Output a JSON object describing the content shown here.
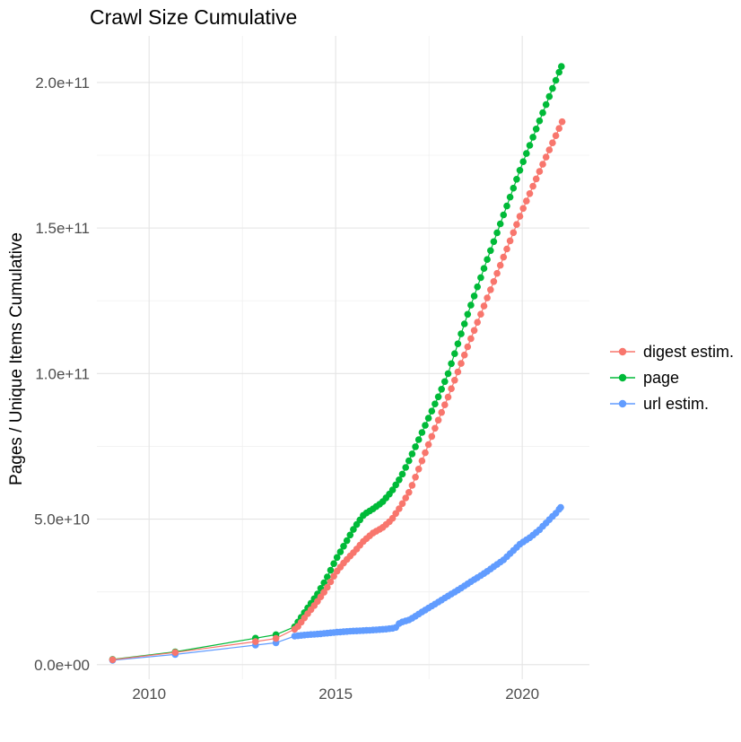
{
  "title": "Crawl Size Cumulative",
  "axes": {
    "x": {
      "tick_labels": [
        "2010",
        "2015",
        "2020"
      ]
    },
    "y": {
      "label": "Pages / Unique Items Cumulative",
      "tick_labels": [
        "0.0e+00",
        "5.0e+10",
        "1.0e+11",
        "1.5e+11",
        "2.0e+11"
      ]
    }
  },
  "legend": {
    "items": [
      {
        "label": "digest estim.",
        "color": "#F8766D"
      },
      {
        "label": "page",
        "color": "#00BA38"
      },
      {
        "label": "url estim.",
        "color": "#619CFF"
      }
    ]
  },
  "colors": {
    "background": "#FFFFFF",
    "grid_major": "#E4E4E4",
    "grid_minor": "#F0F0F0",
    "tick_text": "#4d4d4d"
  },
  "chart_data": {
    "type": "scatter",
    "title": "Crawl Size Cumulative",
    "xlabel": "",
    "ylabel": "Pages / Unique Items Cumulative",
    "grid": true,
    "legend_position": "right",
    "x_ticks_years": [
      2010,
      2015,
      2020
    ],
    "x_minor_ticks_years": [
      2012.5,
      2017.5
    ],
    "x_range_years": [
      2008.6,
      2021.8
    ],
    "y_tick_values": [
      0,
      50000000000.0,
      100000000000.0,
      150000000000.0,
      200000000000.0
    ],
    "y_tick_labels": [
      "0.0e+00",
      "5.0e+10",
      "1.0e+11",
      "1.5e+11",
      "2.0e+11"
    ],
    "y_minor_values": [
      25000000000.0,
      75000000000.0,
      125000000000.0,
      175000000000.0
    ],
    "y_range": [
      -5000000000.0,
      216000000000.0
    ],
    "value_unit": "items cumulative; anchor values given in billions (1e9)",
    "sampling": {
      "dense_start_year": 2013.9,
      "dense_step_years": 0.0875,
      "note": "sparse single crawl dots before 2014, then roughly monthly dots"
    },
    "series": [
      {
        "name": "page",
        "color": "#00BA38",
        "anchors_year_value_e9": [
          [
            2009.02,
            1.8
          ],
          [
            2010.7,
            4.4
          ],
          [
            2012.85,
            9.1
          ],
          [
            2013.4,
            10.3
          ],
          [
            2013.9,
            13.0
          ],
          [
            2014.25,
            19.5
          ],
          [
            2014.5,
            24.0
          ],
          [
            2014.75,
            29.5
          ],
          [
            2015.0,
            36.0
          ],
          [
            2015.25,
            41.5
          ],
          [
            2015.5,
            47.0
          ],
          [
            2015.75,
            51.5
          ],
          [
            2016.0,
            53.5
          ],
          [
            2016.25,
            55.8
          ],
          [
            2016.5,
            59.5
          ],
          [
            2016.75,
            64.5
          ],
          [
            2017.0,
            71.0
          ],
          [
            2017.25,
            78.0
          ],
          [
            2017.5,
            85.0
          ],
          [
            2017.75,
            92.0
          ],
          [
            2018.0,
            99.5
          ],
          [
            2018.5,
            119.0
          ],
          [
            2019.0,
            137.0
          ],
          [
            2019.5,
            154.5
          ],
          [
            2020.0,
            172.0
          ],
          [
            2020.5,
            188.0
          ],
          [
            2021.05,
            205.5
          ]
        ]
      },
      {
        "name": "digest estim.",
        "color": "#F8766D",
        "anchors_year_value_e9": [
          [
            2009.02,
            1.7
          ],
          [
            2010.7,
            4.2
          ],
          [
            2012.85,
            7.9
          ],
          [
            2013.4,
            9.0
          ],
          [
            2013.95,
            12.5
          ],
          [
            2014.25,
            17.5
          ],
          [
            2014.5,
            21.5
          ],
          [
            2014.75,
            26.0
          ],
          [
            2015.0,
            31.5
          ],
          [
            2015.25,
            35.5
          ],
          [
            2015.5,
            38.8
          ],
          [
            2015.75,
            42.5
          ],
          [
            2016.0,
            45.2
          ],
          [
            2016.25,
            47.0
          ],
          [
            2016.5,
            49.8
          ],
          [
            2016.75,
            54.5
          ],
          [
            2017.0,
            60.0
          ],
          [
            2017.25,
            68.0
          ],
          [
            2017.5,
            76.0
          ],
          [
            2017.75,
            84.0
          ],
          [
            2018.0,
            91.5
          ],
          [
            2018.5,
            108.0
          ],
          [
            2019.0,
            124.0
          ],
          [
            2019.5,
            140.0
          ],
          [
            2020.0,
            156.0
          ],
          [
            2020.5,
            170.5
          ],
          [
            2021.07,
            186.5
          ]
        ]
      },
      {
        "name": "url estim.",
        "color": "#619CFF",
        "anchors_year_value_e9": [
          [
            2009.02,
            1.5
          ],
          [
            2010.7,
            3.5
          ],
          [
            2012.85,
            6.7
          ],
          [
            2013.4,
            7.5
          ],
          [
            2013.9,
            9.8
          ],
          [
            2014.2,
            10.2
          ],
          [
            2014.6,
            10.6
          ],
          [
            2015.0,
            11.1
          ],
          [
            2015.4,
            11.5
          ],
          [
            2015.9,
            11.8
          ],
          [
            2016.35,
            12.2
          ],
          [
            2016.6,
            12.6
          ],
          [
            2016.72,
            14.4
          ],
          [
            2017.0,
            15.5
          ],
          [
            2017.3,
            18.0
          ],
          [
            2017.6,
            20.3
          ],
          [
            2017.95,
            23.1
          ],
          [
            2018.3,
            25.8
          ],
          [
            2018.6,
            28.3
          ],
          [
            2019.0,
            31.5
          ],
          [
            2019.5,
            36.0
          ],
          [
            2019.95,
            41.5
          ],
          [
            2020.2,
            43.6
          ],
          [
            2020.45,
            46.2
          ],
          [
            2020.7,
            49.5
          ],
          [
            2020.9,
            52.0
          ],
          [
            2021.03,
            54.0
          ]
        ]
      }
    ]
  }
}
